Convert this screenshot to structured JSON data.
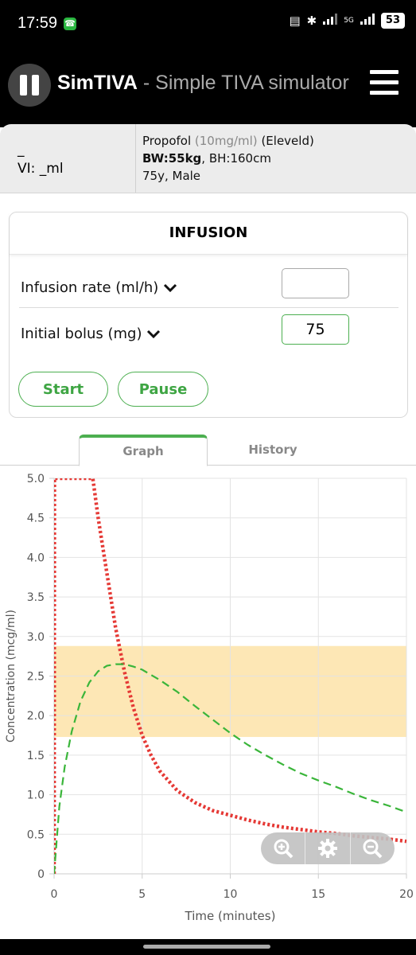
{
  "status": {
    "time": "17:59",
    "network": "5G",
    "battery": "53"
  },
  "app": {
    "title_bold": "SimTIVA",
    "title_rest": " - Simple TIVA simulator"
  },
  "info": {
    "line1": "_",
    "line2": "VI: _ml",
    "drug": "Propofol",
    "concentration": "(10mg/ml)",
    "model": "(Eleveld)",
    "bw": "BW:55kg",
    "bh": ", BH:160cm",
    "demographics": "75y, Male"
  },
  "infusion": {
    "title": "INFUSION",
    "rate_label": "Infusion rate (ml/h)",
    "rate_value": "",
    "bolus_label": "Initial bolus (mg)",
    "bolus_value": "75",
    "start_label": "Start",
    "pause_label": "Pause"
  },
  "tabs": [
    {
      "label": "Graph",
      "active": true
    },
    {
      "label": "History",
      "active": false
    }
  ],
  "colors": {
    "accent": "#4caf50",
    "plasma": "#e53935",
    "effect": "#3ab53a",
    "target_band": "#fde7b5"
  },
  "chart_data": {
    "type": "line",
    "xlabel": "Time (minutes)",
    "ylabel": "Concentration (mcg/ml)",
    "xlim": [
      0,
      20
    ],
    "ylim": [
      0,
      5
    ],
    "xticks": [
      "0",
      "5",
      "10",
      "15",
      "20"
    ],
    "yticks": [
      "0",
      "0.5",
      "1.0",
      "1.5",
      "2.0",
      "2.5",
      "3.0",
      "3.5",
      "4.0",
      "4.5",
      "5.0"
    ],
    "grid": true,
    "target_band": [
      1.73,
      2.88
    ],
    "series": [
      {
        "style": "dotted",
        "color": "#e53935",
        "x": [
          0,
          0.02,
          2.2,
          2.5,
          3.0,
          3.5,
          4.0,
          4.5,
          5.0,
          5.5,
          6.0,
          7.0,
          8.0,
          9.0,
          10.0,
          11.0,
          12.0,
          13.0,
          14.0,
          15.0,
          16.0,
          17.0,
          18.0,
          19.0,
          20.0
        ],
        "y": [
          0,
          5.0,
          5.0,
          4.5,
          3.8,
          3.1,
          2.55,
          2.1,
          1.75,
          1.5,
          1.3,
          1.05,
          0.9,
          0.8,
          0.74,
          0.68,
          0.63,
          0.59,
          0.56,
          0.53,
          0.51,
          0.48,
          0.46,
          0.44,
          0.41
        ]
      },
      {
        "style": "dashed",
        "color": "#3ab53a",
        "x": [
          0,
          0.3,
          0.6,
          1.0,
          1.5,
          2.0,
          2.5,
          3.0,
          3.5,
          4.0,
          4.5,
          5.0,
          6.0,
          7.0,
          8.0,
          9.0,
          10.0,
          11.0,
          12.0,
          13.0,
          14.0,
          15.0,
          16.0,
          17.0,
          18.0,
          19.0,
          20.0
        ],
        "y": [
          0,
          0.85,
          1.35,
          1.8,
          2.18,
          2.42,
          2.56,
          2.63,
          2.65,
          2.65,
          2.62,
          2.58,
          2.45,
          2.3,
          2.12,
          1.95,
          1.78,
          1.63,
          1.5,
          1.38,
          1.27,
          1.18,
          1.1,
          1.01,
          0.93,
          0.86,
          0.78
        ]
      }
    ]
  }
}
